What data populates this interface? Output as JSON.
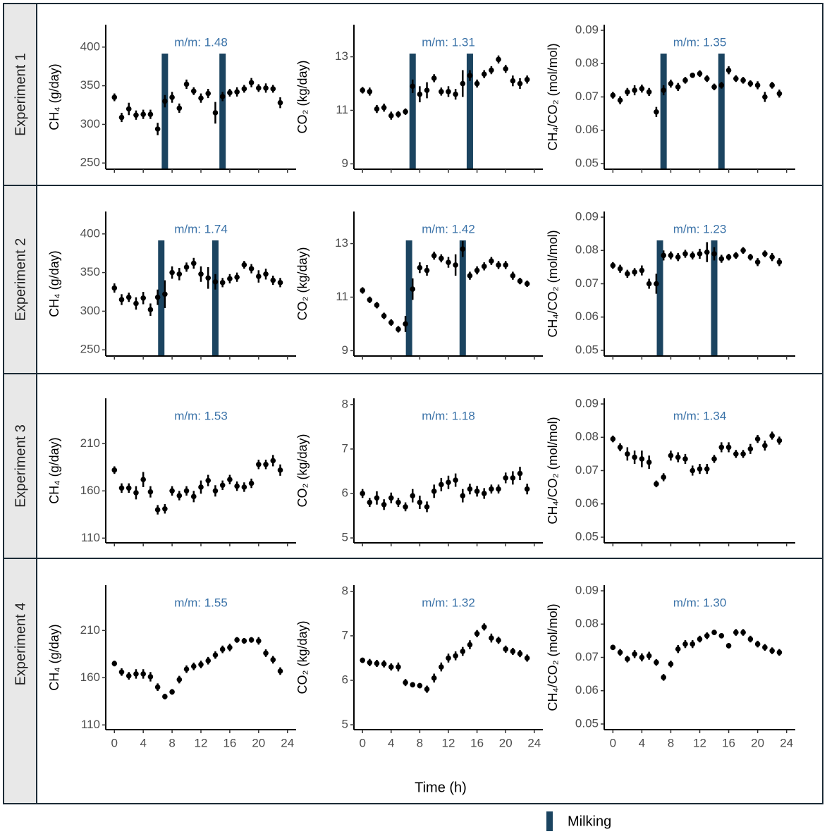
{
  "rows": [
    "Experiment 1",
    "Experiment 2",
    "Experiment 3",
    "Experiment 4"
  ],
  "x_label": "Time (h)",
  "milking_label": "Milking",
  "chart_data": [
    {
      "type": "scatter",
      "y_label": "CH₄ (g/day)",
      "annotation": "m/m: 1.48",
      "x": [
        0,
        1,
        2,
        3,
        4,
        5,
        6,
        7,
        8,
        9,
        10,
        11,
        12,
        13,
        14,
        15,
        16,
        17,
        18,
        19,
        20,
        21,
        22,
        23
      ],
      "values": [
        335,
        309,
        320,
        312,
        313,
        313,
        294,
        330,
        335,
        321,
        352,
        343,
        334,
        340,
        315,
        336,
        341,
        342,
        346,
        354,
        347,
        347,
        346,
        328
      ],
      "errors": [
        5,
        6,
        8,
        6,
        6,
        6,
        8,
        8,
        7,
        6,
        6,
        5,
        6,
        6,
        14,
        6,
        5,
        6,
        5,
        6,
        5,
        6,
        5,
        7
      ],
      "xlim": [
        -1.2,
        25.2
      ],
      "xticks": [
        0,
        4,
        8,
        12,
        16,
        20,
        24
      ],
      "ylim": [
        242,
        429
      ],
      "yticks": [
        250,
        300,
        350,
        400
      ],
      "milking": [
        7,
        15
      ]
    },
    {
      "type": "scatter",
      "y_label": "CO₂ (kg/day)",
      "annotation": "m/m: 1.31",
      "x": [
        0,
        1,
        2,
        3,
        4,
        5,
        6,
        7,
        8,
        9,
        10,
        11,
        12,
        13,
        14,
        15,
        16,
        17,
        18,
        19,
        20,
        21,
        22,
        23
      ],
      "values": [
        11.75,
        11.7,
        11.05,
        11.1,
        10.8,
        10.85,
        10.95,
        11.9,
        11.6,
        11.75,
        12.2,
        11.7,
        11.7,
        11.6,
        12.0,
        12.3,
        12.0,
        12.35,
        12.5,
        12.9,
        12.55,
        12.1,
        12.0,
        12.15
      ],
      "errors": [
        0.12,
        0.15,
        0.15,
        0.15,
        0.15,
        0.12,
        0.12,
        0.25,
        0.3,
        0.3,
        0.15,
        0.15,
        0.2,
        0.2,
        0.5,
        0.2,
        0.15,
        0.15,
        0.15,
        0.15,
        0.15,
        0.2,
        0.2,
        0.15
      ],
      "xlim": [
        -1.2,
        25.2
      ],
      "xticks": [
        0,
        4,
        8,
        12,
        16,
        20,
        24
      ],
      "ylim": [
        8.8,
        14.2
      ],
      "yticks": [
        9,
        11,
        13
      ],
      "milking": [
        7,
        15
      ]
    },
    {
      "type": "scatter",
      "y_label": "CH₄/CO₂ (mol/mol)",
      "annotation": "m/m: 1.35",
      "x": [
        0,
        1,
        2,
        3,
        4,
        5,
        6,
        7,
        8,
        9,
        10,
        11,
        12,
        13,
        14,
        15,
        16,
        17,
        18,
        19,
        20,
        21,
        22,
        23
      ],
      "values": [
        0.0705,
        0.069,
        0.0715,
        0.072,
        0.0725,
        0.0715,
        0.0655,
        0.072,
        0.074,
        0.073,
        0.075,
        0.0765,
        0.077,
        0.0755,
        0.073,
        0.0735,
        0.078,
        0.0755,
        0.075,
        0.074,
        0.0735,
        0.07,
        0.0735,
        0.071
      ],
      "errors": [
        0.001,
        0.0012,
        0.0012,
        0.0015,
        0.0012,
        0.0012,
        0.0015,
        0.0015,
        0.0012,
        0.0012,
        0.001,
        0.0008,
        0.001,
        0.001,
        0.001,
        0.001,
        0.0012,
        0.001,
        0.001,
        0.001,
        0.0012,
        0.0015,
        0.001,
        0.0012
      ],
      "xlim": [
        -1.2,
        25.2
      ],
      "xticks": [
        0,
        4,
        8,
        12,
        16,
        20,
        24
      ],
      "ylim": [
        0.0483,
        0.0917
      ],
      "yticks": [
        0.05,
        0.06,
        0.07,
        0.08,
        0.09
      ],
      "milking": [
        7,
        15
      ]
    },
    {
      "type": "scatter",
      "y_label": "CH₄ (g/day)",
      "annotation": "m/m: 1.74",
      "x": [
        0,
        1,
        2,
        3,
        4,
        5,
        6,
        7,
        8,
        9,
        10,
        11,
        12,
        13,
        14,
        15,
        16,
        17,
        18,
        19,
        20,
        21,
        22,
        23
      ],
      "values": [
        330,
        315,
        318,
        310,
        317,
        302,
        318,
        322,
        350,
        348,
        357,
        362,
        348,
        343,
        338,
        337,
        342,
        344,
        360,
        355,
        345,
        348,
        340,
        337
      ],
      "errors": [
        6,
        7,
        6,
        8,
        8,
        8,
        10,
        18,
        8,
        8,
        6,
        7,
        10,
        14,
        10,
        6,
        6,
        6,
        5,
        6,
        8,
        7,
        6,
        6
      ],
      "xlim": [
        -1.2,
        25.2
      ],
      "xticks": [
        0,
        4,
        8,
        12,
        16,
        20,
        24
      ],
      "ylim": [
        242,
        429
      ],
      "yticks": [
        250,
        300,
        350,
        400
      ],
      "milking": [
        6.5,
        14
      ]
    },
    {
      "type": "scatter",
      "y_label": "CO₂ (kg/day)",
      "annotation": "m/m: 1.42",
      "x": [
        0,
        1,
        2,
        3,
        4,
        5,
        6,
        7,
        8,
        9,
        10,
        11,
        12,
        13,
        14,
        15,
        16,
        17,
        18,
        19,
        20,
        21,
        22,
        23
      ],
      "values": [
        11.25,
        10.9,
        10.7,
        10.3,
        10.05,
        9.8,
        10.0,
        11.3,
        12.1,
        12.0,
        12.55,
        12.45,
        12.3,
        12.2,
        12.8,
        11.8,
        12.0,
        12.15,
        12.35,
        12.2,
        12.2,
        11.8,
        11.6,
        11.5
      ],
      "errors": [
        0.12,
        0.12,
        0.12,
        0.12,
        0.12,
        0.12,
        0.3,
        0.4,
        0.2,
        0.2,
        0.15,
        0.15,
        0.2,
        0.4,
        0.3,
        0.15,
        0.15,
        0.15,
        0.15,
        0.15,
        0.15,
        0.15,
        0.12,
        0.12
      ],
      "xlim": [
        -1.2,
        25.2
      ],
      "xticks": [
        0,
        4,
        8,
        12,
        16,
        20,
        24
      ],
      "ylim": [
        8.8,
        14.2
      ],
      "yticks": [
        9,
        11,
        13
      ],
      "milking": [
        6.5,
        14
      ]
    },
    {
      "type": "scatter",
      "y_label": "CH₄/CO₂ (mol/mol)",
      "annotation": "m/m: 1.23",
      "x": [
        0,
        1,
        2,
        3,
        4,
        5,
        6,
        7,
        8,
        9,
        10,
        11,
        12,
        13,
        14,
        15,
        16,
        17,
        18,
        19,
        20,
        21,
        22,
        23
      ],
      "values": [
        0.0755,
        0.0745,
        0.073,
        0.0735,
        0.074,
        0.07,
        0.07,
        0.0785,
        0.0785,
        0.078,
        0.079,
        0.0785,
        0.079,
        0.0795,
        0.079,
        0.0775,
        0.078,
        0.0785,
        0.08,
        0.078,
        0.0765,
        0.079,
        0.078,
        0.0765
      ],
      "errors": [
        0.001,
        0.0012,
        0.0012,
        0.0012,
        0.0015,
        0.0015,
        0.003,
        0.0015,
        0.0012,
        0.0012,
        0.0012,
        0.0012,
        0.0015,
        0.003,
        0.002,
        0.0012,
        0.001,
        0.001,
        0.001,
        0.001,
        0.0012,
        0.001,
        0.0012,
        0.0012
      ],
      "xlim": [
        -1.2,
        25.2
      ],
      "xticks": [
        0,
        4,
        8,
        12,
        16,
        20,
        24
      ],
      "ylim": [
        0.0483,
        0.0917
      ],
      "yticks": [
        0.05,
        0.06,
        0.07,
        0.08,
        0.09
      ],
      "milking": [
        6.5,
        14
      ]
    },
    {
      "type": "scatter",
      "y_label": "CH₄ (g/day)",
      "annotation": "m/m: 1.53",
      "x": [
        0,
        1,
        2,
        3,
        4,
        5,
        6,
        7,
        8,
        9,
        10,
        11,
        12,
        13,
        14,
        15,
        16,
        17,
        18,
        19,
        20,
        21,
        22,
        23
      ],
      "values": [
        182,
        163,
        163,
        158,
        172,
        159,
        140,
        141,
        160,
        155,
        160,
        154,
        164,
        171,
        160,
        166,
        172,
        165,
        164,
        168,
        188,
        188,
        192,
        182
      ],
      "errors": [
        4,
        5,
        5,
        7,
        8,
        6,
        5,
        5,
        5,
        5,
        5,
        6,
        7,
        6,
        6,
        5,
        5,
        5,
        5,
        5,
        5,
        5,
        6,
        6
      ],
      "xlim": [
        -1.2,
        25.2
      ],
      "xticks": [
        0,
        4,
        8,
        12,
        16,
        20,
        24
      ],
      "ylim": [
        105,
        258
      ],
      "yticks": [
        110,
        160,
        210
      ]
    },
    {
      "type": "scatter",
      "y_label": "CO₂ (kg/day)",
      "annotation": "m/m: 1.18",
      "x": [
        0,
        1,
        2,
        3,
        4,
        5,
        6,
        7,
        8,
        9,
        10,
        11,
        12,
        13,
        14,
        15,
        16,
        17,
        18,
        19,
        20,
        21,
        22,
        23
      ],
      "values": [
        6.0,
        5.8,
        5.9,
        5.75,
        5.9,
        5.8,
        5.7,
        5.95,
        5.8,
        5.7,
        6.05,
        6.2,
        6.25,
        6.3,
        5.95,
        6.1,
        6.05,
        6.0,
        6.1,
        6.1,
        6.35,
        6.35,
        6.45,
        6.1
      ],
      "errors": [
        0.1,
        0.1,
        0.15,
        0.12,
        0.12,
        0.1,
        0.1,
        0.15,
        0.15,
        0.12,
        0.15,
        0.15,
        0.15,
        0.15,
        0.15,
        0.12,
        0.12,
        0.12,
        0.1,
        0.1,
        0.12,
        0.15,
        0.15,
        0.12
      ],
      "xlim": [
        -1.2,
        25.2
      ],
      "xticks": [
        0,
        4,
        8,
        12,
        16,
        20,
        24
      ],
      "ylim": [
        4.89,
        8.14
      ],
      "yticks": [
        5,
        6,
        7,
        8
      ]
    },
    {
      "type": "scatter",
      "y_label": "CH₄/CO₂ (mol/mol)",
      "annotation": "m/m: 1.34",
      "x": [
        0,
        1,
        2,
        3,
        4,
        5,
        6,
        7,
        8,
        9,
        10,
        11,
        12,
        13,
        14,
        15,
        16,
        17,
        18,
        19,
        20,
        21,
        22,
        23
      ],
      "values": [
        0.0795,
        0.077,
        0.075,
        0.074,
        0.0735,
        0.0725,
        0.066,
        0.068,
        0.0745,
        0.074,
        0.0735,
        0.07,
        0.0705,
        0.0705,
        0.0735,
        0.077,
        0.077,
        0.075,
        0.075,
        0.0765,
        0.0795,
        0.0775,
        0.0805,
        0.079
      ],
      "errors": [
        0.001,
        0.0012,
        0.002,
        0.002,
        0.0025,
        0.002,
        0.001,
        0.0012,
        0.0015,
        0.0015,
        0.0015,
        0.0015,
        0.0015,
        0.0015,
        0.0012,
        0.0015,
        0.0015,
        0.0012,
        0.0012,
        0.0015,
        0.0012,
        0.0015,
        0.0012,
        0.0012
      ],
      "xlim": [
        -1.2,
        25.2
      ],
      "xticks": [
        0,
        4,
        8,
        12,
        16,
        20,
        24
      ],
      "ylim": [
        0.0483,
        0.0917
      ],
      "yticks": [
        0.05,
        0.06,
        0.07,
        0.08,
        0.09
      ]
    },
    {
      "type": "scatter",
      "y_label": "CH₄ (g/day)",
      "annotation": "m/m: 1.55",
      "x": [
        0,
        1,
        2,
        3,
        4,
        5,
        6,
        7,
        8,
        9,
        10,
        11,
        12,
        13,
        14,
        15,
        16,
        17,
        18,
        19,
        20,
        21,
        22,
        23
      ],
      "values": [
        175,
        166,
        162,
        164,
        164,
        161,
        150,
        140,
        145,
        158,
        169,
        172,
        174,
        178,
        184,
        190,
        192,
        200,
        199,
        200,
        199,
        186,
        179,
        167
      ],
      "errors": [
        3,
        4,
        4,
        5,
        5,
        5,
        4,
        3,
        3,
        4,
        4,
        4,
        4,
        4,
        4,
        4,
        4,
        3,
        3,
        3,
        4,
        4,
        4,
        4
      ],
      "xlim": [
        -1.2,
        25.2
      ],
      "xticks": [
        0,
        4,
        8,
        12,
        16,
        20,
        24
      ],
      "ylim": [
        105,
        258
      ],
      "yticks": [
        110,
        160,
        210
      ]
    },
    {
      "type": "scatter",
      "y_label": "CO₂ (kg/day)",
      "annotation": "m/m: 1.32",
      "x": [
        0,
        1,
        2,
        3,
        4,
        5,
        6,
        7,
        8,
        9,
        10,
        11,
        12,
        13,
        14,
        15,
        16,
        17,
        18,
        19,
        20,
        21,
        22,
        23
      ],
      "values": [
        6.45,
        6.4,
        6.38,
        6.37,
        6.3,
        6.3,
        5.95,
        5.9,
        5.88,
        5.8,
        6.05,
        6.3,
        6.5,
        6.55,
        6.65,
        6.8,
        7.05,
        7.2,
        6.95,
        6.9,
        6.7,
        6.65,
        6.6,
        6.5
      ],
      "errors": [
        0.06,
        0.08,
        0.08,
        0.08,
        0.08,
        0.1,
        0.08,
        0.06,
        0.06,
        0.08,
        0.1,
        0.1,
        0.1,
        0.1,
        0.1,
        0.1,
        0.08,
        0.08,
        0.1,
        0.08,
        0.08,
        0.08,
        0.08,
        0.08
      ],
      "xlim": [
        -1.2,
        25.2
      ],
      "xticks": [
        0,
        4,
        8,
        12,
        16,
        20,
        24
      ],
      "ylim": [
        4.89,
        8.14
      ],
      "yticks": [
        5,
        6,
        7,
        8
      ]
    },
    {
      "type": "scatter",
      "y_label": "CH₄/CO₂ (mol/mol)",
      "annotation": "m/m: 1.30",
      "x": [
        0,
        1,
        2,
        3,
        4,
        5,
        6,
        7,
        8,
        9,
        10,
        11,
        12,
        13,
        14,
        15,
        16,
        17,
        18,
        19,
        20,
        21,
        22,
        23
      ],
      "values": [
        0.073,
        0.0715,
        0.0695,
        0.071,
        0.07,
        0.0705,
        0.0685,
        0.064,
        0.068,
        0.0725,
        0.074,
        0.074,
        0.0755,
        0.0765,
        0.0775,
        0.0765,
        0.0735,
        0.0775,
        0.0775,
        0.0755,
        0.074,
        0.073,
        0.072,
        0.0715
      ],
      "errors": [
        0.0008,
        0.001,
        0.001,
        0.0012,
        0.0012,
        0.0012,
        0.001,
        0.001,
        0.001,
        0.0012,
        0.0012,
        0.0012,
        0.001,
        0.001,
        0.0008,
        0.0008,
        0.0008,
        0.001,
        0.001,
        0.001,
        0.001,
        0.001,
        0.001,
        0.001
      ],
      "xlim": [
        -1.2,
        25.2
      ],
      "xticks": [
        0,
        4,
        8,
        12,
        16,
        20,
        24
      ],
      "ylim": [
        0.0483,
        0.0917
      ],
      "yticks": [
        0.05,
        0.06,
        0.07,
        0.08,
        0.09
      ]
    }
  ]
}
